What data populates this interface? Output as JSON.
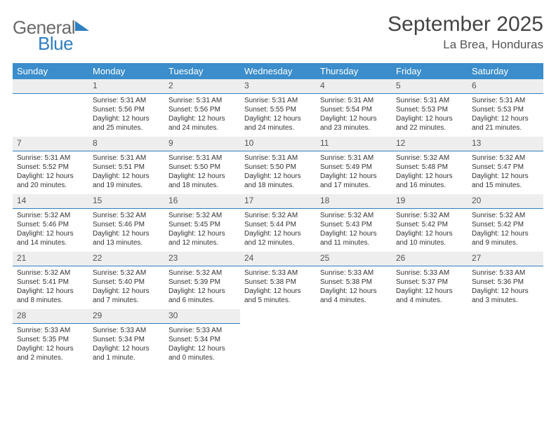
{
  "header": {
    "logo_general": "General",
    "logo_blue": "Blue",
    "month_title": "September 2025",
    "location": "La Brea, Honduras"
  },
  "style": {
    "header_bg": "#3b8dcb",
    "header_fg": "#ffffff",
    "daynum_bg": "#eeeeee",
    "accent_border": "#2f7fc2",
    "logo_gray": "#6a6a6a",
    "logo_blue": "#2f7fc2",
    "body_text": "#333333",
    "page_bg": "#ffffff",
    "font_family": "Arial, Helvetica, sans-serif",
    "title_fontsize": 30,
    "location_fontsize": 17,
    "header_fontsize": 13,
    "cell_fontsize": 10
  },
  "day_names": [
    "Sunday",
    "Monday",
    "Tuesday",
    "Wednesday",
    "Thursday",
    "Friday",
    "Saturday"
  ],
  "weeks": [
    [
      null,
      {
        "n": "1",
        "sr": "Sunrise: 5:31 AM",
        "ss": "Sunset: 5:56 PM",
        "d1": "Daylight: 12 hours",
        "d2": "and 25 minutes."
      },
      {
        "n": "2",
        "sr": "Sunrise: 5:31 AM",
        "ss": "Sunset: 5:56 PM",
        "d1": "Daylight: 12 hours",
        "d2": "and 24 minutes."
      },
      {
        "n": "3",
        "sr": "Sunrise: 5:31 AM",
        "ss": "Sunset: 5:55 PM",
        "d1": "Daylight: 12 hours",
        "d2": "and 24 minutes."
      },
      {
        "n": "4",
        "sr": "Sunrise: 5:31 AM",
        "ss": "Sunset: 5:54 PM",
        "d1": "Daylight: 12 hours",
        "d2": "and 23 minutes."
      },
      {
        "n": "5",
        "sr": "Sunrise: 5:31 AM",
        "ss": "Sunset: 5:53 PM",
        "d1": "Daylight: 12 hours",
        "d2": "and 22 minutes."
      },
      {
        "n": "6",
        "sr": "Sunrise: 5:31 AM",
        "ss": "Sunset: 5:53 PM",
        "d1": "Daylight: 12 hours",
        "d2": "and 21 minutes."
      }
    ],
    [
      {
        "n": "7",
        "sr": "Sunrise: 5:31 AM",
        "ss": "Sunset: 5:52 PM",
        "d1": "Daylight: 12 hours",
        "d2": "and 20 minutes."
      },
      {
        "n": "8",
        "sr": "Sunrise: 5:31 AM",
        "ss": "Sunset: 5:51 PM",
        "d1": "Daylight: 12 hours",
        "d2": "and 19 minutes."
      },
      {
        "n": "9",
        "sr": "Sunrise: 5:31 AM",
        "ss": "Sunset: 5:50 PM",
        "d1": "Daylight: 12 hours",
        "d2": "and 18 minutes."
      },
      {
        "n": "10",
        "sr": "Sunrise: 5:31 AM",
        "ss": "Sunset: 5:50 PM",
        "d1": "Daylight: 12 hours",
        "d2": "and 18 minutes."
      },
      {
        "n": "11",
        "sr": "Sunrise: 5:31 AM",
        "ss": "Sunset: 5:49 PM",
        "d1": "Daylight: 12 hours",
        "d2": "and 17 minutes."
      },
      {
        "n": "12",
        "sr": "Sunrise: 5:32 AM",
        "ss": "Sunset: 5:48 PM",
        "d1": "Daylight: 12 hours",
        "d2": "and 16 minutes."
      },
      {
        "n": "13",
        "sr": "Sunrise: 5:32 AM",
        "ss": "Sunset: 5:47 PM",
        "d1": "Daylight: 12 hours",
        "d2": "and 15 minutes."
      }
    ],
    [
      {
        "n": "14",
        "sr": "Sunrise: 5:32 AM",
        "ss": "Sunset: 5:46 PM",
        "d1": "Daylight: 12 hours",
        "d2": "and 14 minutes."
      },
      {
        "n": "15",
        "sr": "Sunrise: 5:32 AM",
        "ss": "Sunset: 5:46 PM",
        "d1": "Daylight: 12 hours",
        "d2": "and 13 minutes."
      },
      {
        "n": "16",
        "sr": "Sunrise: 5:32 AM",
        "ss": "Sunset: 5:45 PM",
        "d1": "Daylight: 12 hours",
        "d2": "and 12 minutes."
      },
      {
        "n": "17",
        "sr": "Sunrise: 5:32 AM",
        "ss": "Sunset: 5:44 PM",
        "d1": "Daylight: 12 hours",
        "d2": "and 12 minutes."
      },
      {
        "n": "18",
        "sr": "Sunrise: 5:32 AM",
        "ss": "Sunset: 5:43 PM",
        "d1": "Daylight: 12 hours",
        "d2": "and 11 minutes."
      },
      {
        "n": "19",
        "sr": "Sunrise: 5:32 AM",
        "ss": "Sunset: 5:42 PM",
        "d1": "Daylight: 12 hours",
        "d2": "and 10 minutes."
      },
      {
        "n": "20",
        "sr": "Sunrise: 5:32 AM",
        "ss": "Sunset: 5:42 PM",
        "d1": "Daylight: 12 hours",
        "d2": "and 9 minutes."
      }
    ],
    [
      {
        "n": "21",
        "sr": "Sunrise: 5:32 AM",
        "ss": "Sunset: 5:41 PM",
        "d1": "Daylight: 12 hours",
        "d2": "and 8 minutes."
      },
      {
        "n": "22",
        "sr": "Sunrise: 5:32 AM",
        "ss": "Sunset: 5:40 PM",
        "d1": "Daylight: 12 hours",
        "d2": "and 7 minutes."
      },
      {
        "n": "23",
        "sr": "Sunrise: 5:32 AM",
        "ss": "Sunset: 5:39 PM",
        "d1": "Daylight: 12 hours",
        "d2": "and 6 minutes."
      },
      {
        "n": "24",
        "sr": "Sunrise: 5:33 AM",
        "ss": "Sunset: 5:38 PM",
        "d1": "Daylight: 12 hours",
        "d2": "and 5 minutes."
      },
      {
        "n": "25",
        "sr": "Sunrise: 5:33 AM",
        "ss": "Sunset: 5:38 PM",
        "d1": "Daylight: 12 hours",
        "d2": "and 4 minutes."
      },
      {
        "n": "26",
        "sr": "Sunrise: 5:33 AM",
        "ss": "Sunset: 5:37 PM",
        "d1": "Daylight: 12 hours",
        "d2": "and 4 minutes."
      },
      {
        "n": "27",
        "sr": "Sunrise: 5:33 AM",
        "ss": "Sunset: 5:36 PM",
        "d1": "Daylight: 12 hours",
        "d2": "and 3 minutes."
      }
    ],
    [
      {
        "n": "28",
        "sr": "Sunrise: 5:33 AM",
        "ss": "Sunset: 5:35 PM",
        "d1": "Daylight: 12 hours",
        "d2": "and 2 minutes."
      },
      {
        "n": "29",
        "sr": "Sunrise: 5:33 AM",
        "ss": "Sunset: 5:34 PM",
        "d1": "Daylight: 12 hours",
        "d2": "and 1 minute."
      },
      {
        "n": "30",
        "sr": "Sunrise: 5:33 AM",
        "ss": "Sunset: 5:34 PM",
        "d1": "Daylight: 12 hours",
        "d2": "and 0 minutes."
      },
      null,
      null,
      null,
      null
    ]
  ]
}
